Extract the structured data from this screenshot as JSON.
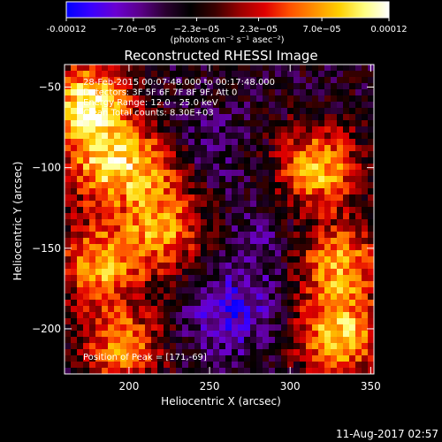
{
  "colorbar": {
    "tick_labels": [
      "-0.00012",
      "−7.0e−05",
      "−2.3e−05",
      "2.3e−05",
      "7.0e−05",
      "0.00012"
    ],
    "unit_label": "(photons cm⁻² s⁻¹ asec⁻²)",
    "range": [
      -0.00012,
      0.00012
    ],
    "colormap": [
      "#0000ff",
      "#3a00ff",
      "#6a00d0",
      "#5a0088",
      "#2a0030",
      "#000000",
      "#3a0000",
      "#9a0000",
      "#e00000",
      "#ff5000",
      "#ff9000",
      "#ffd000",
      "#ffff80",
      "#ffffff"
    ]
  },
  "plot": {
    "title": "Reconstructed RHESSI Image",
    "info_lines": [
      "28-Feb-2015 00:07:48.000 to 00:17:48.000",
      "Detectors: 3F 5F 6F 7F 8F 9F, Att 0",
      "Energy Range: 12.0 - 25.0 keV",
      "Clean    Total counts: 8.30E+03"
    ],
    "peak_label": "Position of Peak = [171,-69]"
  },
  "footer_timestamp": "11-Aug-2017 02:57",
  "chart_data": {
    "type": "heatmap",
    "title": "Reconstructed RHESSI Image",
    "xlabel": "Heliocentric X (arcsec)",
    "ylabel": "Heliocentric Y (arcsec)",
    "xlim": [
      160,
      352
    ],
    "ylim": [
      -228,
      -36
    ],
    "x_ticks": [
      200,
      250,
      300,
      350
    ],
    "y_ticks": [
      -50,
      -100,
      -150,
      -200
    ],
    "x_tick_labels": [
      "200",
      "250",
      "300",
      "350"
    ],
    "y_tick_labels": [
      "−50",
      "−100",
      "−150",
      "−200"
    ],
    "peak_position": [
      171,
      -69
    ],
    "bright_regions": [
      {
        "x": 175,
        "y": -60,
        "value": 0.00012
      },
      {
        "x": 183,
        "y": -100,
        "value": 7e-05
      },
      {
        "x": 182,
        "y": -160,
        "value": 8e-05
      },
      {
        "x": 215,
        "y": -100,
        "value": 6e-05
      },
      {
        "x": 222,
        "y": -140,
        "value": 7e-05
      },
      {
        "x": 318,
        "y": -100,
        "value": 9e-05
      },
      {
        "x": 330,
        "y": -160,
        "value": 8e-05
      },
      {
        "x": 330,
        "y": -205,
        "value": 0.0001
      },
      {
        "x": 195,
        "y": -210,
        "value": 7e-05
      }
    ],
    "dark_regions": [
      {
        "x": 240,
        "y": -90,
        "value": -7e-05
      },
      {
        "x": 262,
        "y": -190,
        "value": -0.0001
      },
      {
        "x": 280,
        "y": -150,
        "value": -6e-05
      }
    ]
  }
}
